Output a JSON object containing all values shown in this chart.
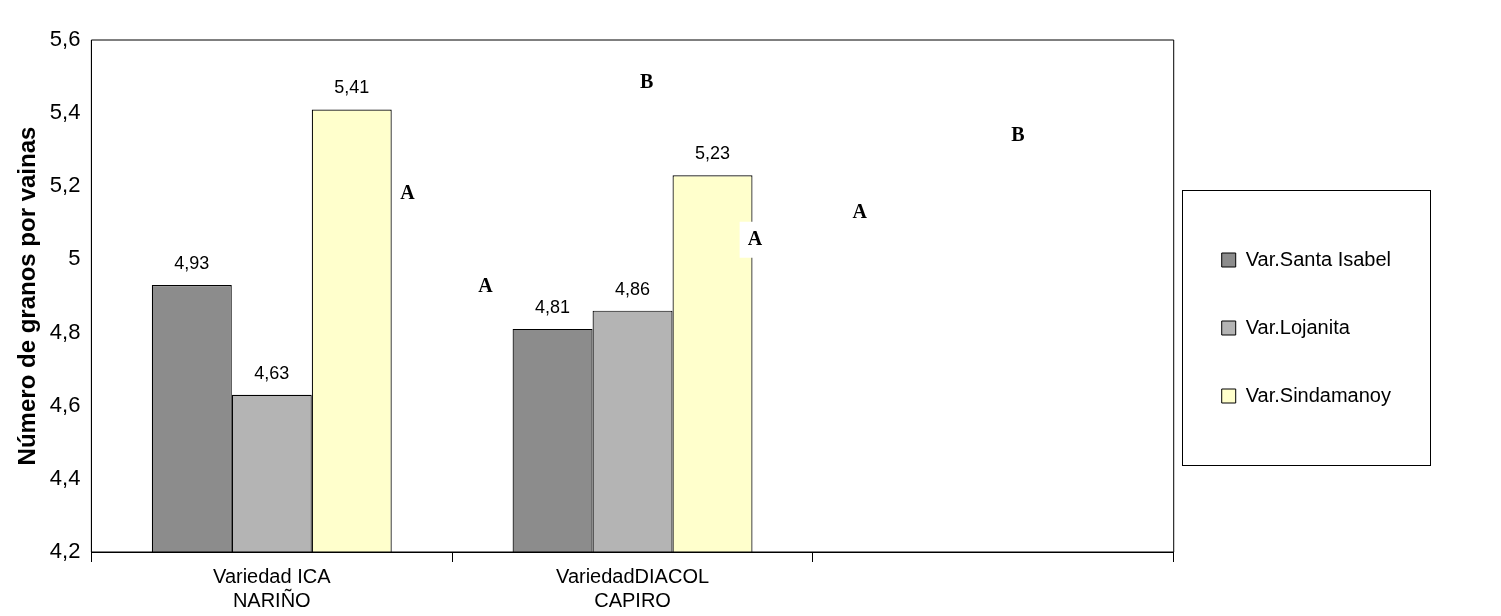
{
  "chart_data": {
    "type": "bar",
    "ylabel": "Número de granos por vainas",
    "categories": [
      "Variedad ICA NARIÑO",
      "VariedadDIACOL CAPIRO",
      null
    ],
    "series": [
      {
        "name": "Var.Santa Isabel",
        "color": "#8c8c8c",
        "values": [
          4.93,
          4.81,
          null
        ],
        "value_labels": [
          "4,93",
          "4,81",
          null
        ]
      },
      {
        "name": "Var.Lojanita",
        "color": "#b4b4b4",
        "values": [
          4.63,
          4.86,
          null
        ],
        "value_labels": [
          "4,63",
          "4,86",
          null
        ]
      },
      {
        "name": "Var.Sindamanoy",
        "color": "#ffffcc",
        "values": [
          5.41,
          5.23,
          null
        ],
        "value_labels": [
          "5,41",
          "5,23",
          null
        ]
      }
    ],
    "ylim": [
      4.2,
      5.6
    ],
    "yticks": [
      {
        "value": 4.2,
        "label": "4,2"
      },
      {
        "value": 4.4,
        "label": "4,4"
      },
      {
        "value": 4.6,
        "label": "4,6"
      },
      {
        "value": 4.8,
        "label": "4,8"
      },
      5,
      {
        "value": 5.2,
        "label": "5,2"
      },
      {
        "value": 5.4,
        "label": "5,4"
      },
      {
        "value": 5.6,
        "label": "5,6"
      }
    ],
    "grid": false,
    "legend": "right",
    "annotations": [
      "A",
      "B",
      "A",
      "A",
      "A",
      "B"
    ]
  }
}
